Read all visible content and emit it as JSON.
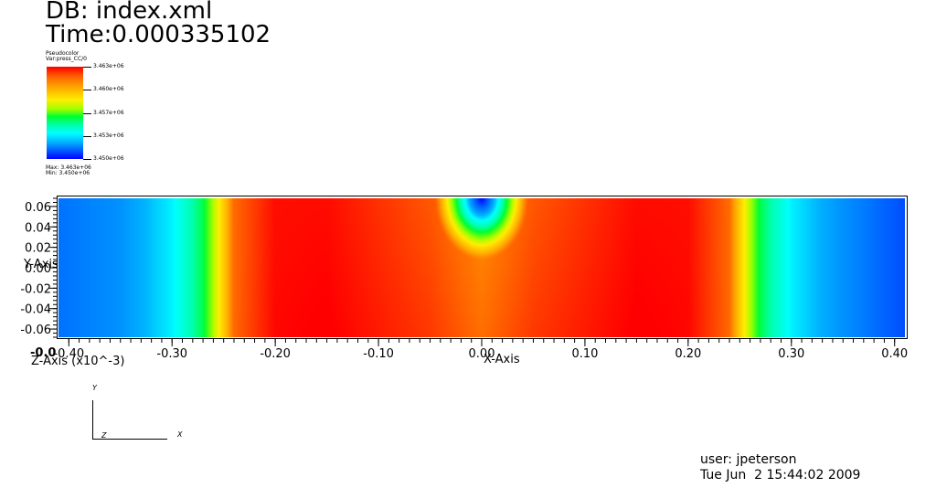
{
  "header": {
    "db": "DB: index.xml",
    "time": "Time:0.000335102"
  },
  "legend": {
    "plot_type": "Pseudocolor",
    "var": "Var:press_CC/0",
    "ticks": [
      "3.463e+06",
      "3.460e+06",
      "3.457e+06",
      "3.453e+06",
      "3.450e+06"
    ],
    "max": "Max: 3.463e+06",
    "min": "Min: 3.450e+06"
  },
  "chart_data": {
    "type": "heatmap",
    "variable": "press_CC/0",
    "xlabel": "X-Axis",
    "ylabel": "Y-Axis",
    "zlabel": "Z-Axis (x10^-3)",
    "xlim": [
      -0.41,
      0.41
    ],
    "ylim": [
      -0.068,
      0.068
    ],
    "z_overlap_tick": "-0.0",
    "x_ticks": [
      "-0.40",
      "-0.30",
      "-0.20",
      "-0.10",
      "0.00",
      "0.10",
      "0.20",
      "0.30",
      "0.40"
    ],
    "x_tick_values": [
      -0.4,
      -0.3,
      -0.2,
      -0.1,
      0.0,
      0.1,
      0.2,
      0.3,
      0.4
    ],
    "y_ticks": [
      "0.06",
      "0.04",
      "0.02",
      "0.00",
      "-0.02",
      "-0.04",
      "-0.06"
    ],
    "y_tick_values": [
      0.06,
      0.04,
      0.02,
      0.0,
      -0.02,
      -0.04,
      -0.06
    ],
    "value_range": [
      3450000,
      3463000
    ],
    "colormap": "hot_desaturated_rainbow",
    "profile_x": [
      -0.41,
      -0.35,
      -0.3,
      -0.27,
      -0.255,
      -0.24,
      -0.2,
      -0.15,
      -0.1,
      -0.05,
      0.0,
      0.05,
      0.1,
      0.15,
      0.2,
      0.24,
      0.255,
      0.27,
      0.3,
      0.35,
      0.41
    ],
    "profile_values": [
      3452300,
      3453000,
      3454500,
      3456800,
      3459300,
      3461700,
      3462900,
      3463000,
      3462600,
      3462200,
      3461500,
      3462200,
      3462600,
      3463000,
      3462900,
      3461700,
      3459300,
      3456800,
      3454500,
      3453000,
      3451500
    ],
    "dip_center": [
      0.0,
      0.068
    ],
    "dip_min_value": 3450000
  },
  "triad": {
    "y": "Y",
    "z": "Z",
    "x": "X"
  },
  "footer": {
    "user": "user: jpeterson",
    "date": "Tue Jun  2 15:44:02 2009"
  }
}
